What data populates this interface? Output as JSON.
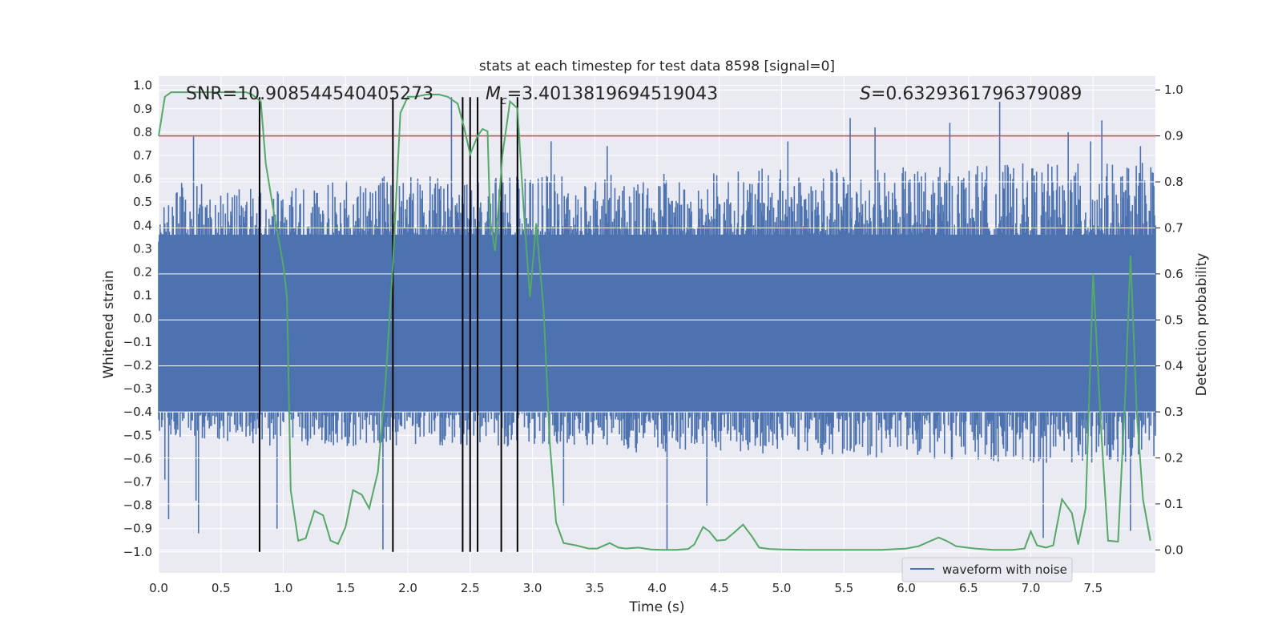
{
  "chart_data": {
    "type": "line",
    "title": "stats at each timestep for test data 8598 [signal=0]",
    "xlabel": "Time (s)",
    "ylabel_left": "Whitened strain",
    "ylabel_right": "Detection probability",
    "xlim": [
      0.0,
      8.0
    ],
    "ylim_left": [
      -1.09,
      1.04
    ],
    "ylim_right": [
      -0.05,
      1.03
    ],
    "x_ticks": [
      "0.0",
      "0.5",
      "1.0",
      "1.5",
      "2.0",
      "2.5",
      "3.0",
      "3.5",
      "4.0",
      "4.5",
      "5.0",
      "5.5",
      "6.0",
      "6.5",
      "7.0",
      "7.5"
    ],
    "y_ticks_left": [
      "1.0",
      "0.9",
      "0.8",
      "0.7",
      "0.6",
      "0.5",
      "0.4",
      "0.3",
      "0.2",
      "0.1",
      "0.0",
      "-0.1",
      "-0.2",
      "-0.3",
      "-0.4",
      "-0.5",
      "-0.6",
      "-0.7",
      "-0.8",
      "-0.9",
      "-1.0"
    ],
    "y_ticks_right": [
      "1.0",
      "0.9",
      "0.8",
      "0.7",
      "0.6",
      "0.5",
      "0.4",
      "0.3",
      "0.2",
      "0.1",
      "0.0"
    ],
    "annotations": {
      "snr": "SNR=10.908544540405273",
      "mc_symbol": "M",
      "mc_sub": "c",
      "mc_value": "=3.4013819694519043",
      "s_symbol": "S",
      "s_value": "=0.6329361796379089"
    },
    "legend": {
      "label": "waveform with noise",
      "location": "lower-right"
    },
    "threshold": {
      "value": 0.9,
      "axis": "right",
      "color": "#c44e52"
    },
    "vertical_markers": [
      0.81,
      1.88,
      2.44,
      2.5,
      2.56,
      2.75,
      2.88
    ],
    "series": [
      {
        "name": "waveform with noise",
        "color": "#4c72b0",
        "axis": "left",
        "note": "dense noisy strain, core band about ±0.4 with spikes to about ±0.95",
        "envelope_hi_anchors": [
          [
            0.0,
            0.45
          ],
          [
            0.2,
            0.62
          ],
          [
            0.5,
            0.58
          ],
          [
            1.0,
            0.55
          ],
          [
            1.5,
            0.6
          ],
          [
            2.0,
            0.62
          ],
          [
            2.5,
            0.6
          ],
          [
            3.0,
            0.62
          ],
          [
            4.0,
            0.62
          ],
          [
            5.0,
            0.65
          ],
          [
            6.0,
            0.65
          ],
          [
            7.0,
            0.67
          ],
          [
            8.0,
            0.67
          ]
        ],
        "envelope_lo_anchors": [
          [
            0.0,
            -0.5
          ],
          [
            1.0,
            -0.55
          ],
          [
            2.0,
            -0.55
          ],
          [
            3.0,
            -0.55
          ],
          [
            4.0,
            -0.58
          ],
          [
            5.0,
            -0.58
          ],
          [
            6.0,
            -0.6
          ],
          [
            7.0,
            -0.62
          ],
          [
            8.0,
            -0.62
          ]
        ],
        "spikes": [
          [
            0.05,
            -0.69
          ],
          [
            0.08,
            -0.86
          ],
          [
            0.28,
            0.78
          ],
          [
            0.3,
            -0.78
          ],
          [
            0.32,
            -0.92
          ],
          [
            0.95,
            -0.9
          ],
          [
            1.8,
            -0.99
          ],
          [
            2.35,
            0.95
          ],
          [
            3.15,
            0.76
          ],
          [
            3.25,
            -0.8
          ],
          [
            3.6,
            0.74
          ],
          [
            4.08,
            -0.99
          ],
          [
            4.4,
            -0.8
          ],
          [
            5.05,
            0.76
          ],
          [
            5.55,
            0.86
          ],
          [
            5.75,
            0.82
          ],
          [
            6.35,
            0.84
          ],
          [
            6.75,
            0.93
          ],
          [
            7.1,
            -0.94
          ],
          [
            7.3,
            0.8
          ],
          [
            7.48,
            0.76
          ],
          [
            7.57,
            0.85
          ],
          [
            7.8,
            -0.91
          ],
          [
            7.88,
            0.74
          ]
        ]
      },
      {
        "name": "detection probability",
        "color": "#55a868",
        "axis": "right",
        "points": [
          [
            0.0,
            0.9
          ],
          [
            0.05,
            0.985
          ],
          [
            0.1,
            0.995
          ],
          [
            0.2,
            0.995
          ],
          [
            0.3,
            0.995
          ],
          [
            0.4,
            0.995
          ],
          [
            0.5,
            0.995
          ],
          [
            0.6,
            0.995
          ],
          [
            0.7,
            0.995
          ],
          [
            0.75,
            0.99
          ],
          [
            0.82,
            0.975
          ],
          [
            0.86,
            0.84
          ],
          [
            0.92,
            0.74
          ],
          [
            1.0,
            0.62
          ],
          [
            1.03,
            0.55
          ],
          [
            1.06,
            0.13
          ],
          [
            1.12,
            0.02
          ],
          [
            1.18,
            0.025
          ],
          [
            1.25,
            0.085
          ],
          [
            1.32,
            0.075
          ],
          [
            1.38,
            0.02
          ],
          [
            1.44,
            0.013
          ],
          [
            1.5,
            0.05
          ],
          [
            1.56,
            0.13
          ],
          [
            1.63,
            0.12
          ],
          [
            1.69,
            0.09
          ],
          [
            1.76,
            0.17
          ],
          [
            1.82,
            0.36
          ],
          [
            1.88,
            0.62
          ],
          [
            1.94,
            0.95
          ],
          [
            2.0,
            0.985
          ],
          [
            2.06,
            0.985
          ],
          [
            2.15,
            0.99
          ],
          [
            2.25,
            0.99
          ],
          [
            2.32,
            0.985
          ],
          [
            2.4,
            0.97
          ],
          [
            2.45,
            0.92
          ],
          [
            2.5,
            0.86
          ],
          [
            2.56,
            0.9
          ],
          [
            2.6,
            0.915
          ],
          [
            2.64,
            0.91
          ],
          [
            2.66,
            0.72
          ],
          [
            2.7,
            0.65
          ],
          [
            2.76,
            0.86
          ],
          [
            2.82,
            0.975
          ],
          [
            2.88,
            0.96
          ],
          [
            2.93,
            0.74
          ],
          [
            2.98,
            0.55
          ],
          [
            3.03,
            0.71
          ],
          [
            3.09,
            0.52
          ],
          [
            3.14,
            0.23
          ],
          [
            3.19,
            0.06
          ],
          [
            3.25,
            0.015
          ],
          [
            3.35,
            0.01
          ],
          [
            3.45,
            0.003
          ],
          [
            3.52,
            0.003
          ],
          [
            3.62,
            0.015
          ],
          [
            3.69,
            0.005
          ],
          [
            3.75,
            0.003
          ],
          [
            3.85,
            0.005
          ],
          [
            3.95,
            0.001
          ],
          [
            4.05,
            0.0
          ],
          [
            4.15,
            0.0
          ],
          [
            4.25,
            0.002
          ],
          [
            4.3,
            0.012
          ],
          [
            4.37,
            0.05
          ],
          [
            4.42,
            0.04
          ],
          [
            4.48,
            0.02
          ],
          [
            4.55,
            0.022
          ],
          [
            4.62,
            0.038
          ],
          [
            4.69,
            0.055
          ],
          [
            4.76,
            0.03
          ],
          [
            4.82,
            0.005
          ],
          [
            4.9,
            0.002
          ],
          [
            5.0,
            0.001
          ],
          [
            5.2,
            0.0
          ],
          [
            5.5,
            0.0
          ],
          [
            5.8,
            0.0
          ],
          [
            6.0,
            0.003
          ],
          [
            6.1,
            0.008
          ],
          [
            6.2,
            0.02
          ],
          [
            6.26,
            0.027
          ],
          [
            6.32,
            0.02
          ],
          [
            6.4,
            0.008
          ],
          [
            6.55,
            0.003
          ],
          [
            6.7,
            0.0
          ],
          [
            6.85,
            0.0
          ],
          [
            6.95,
            0.003
          ],
          [
            7.0,
            0.04
          ],
          [
            7.05,
            0.01
          ],
          [
            7.12,
            0.005
          ],
          [
            7.18,
            0.01
          ],
          [
            7.25,
            0.11
          ],
          [
            7.33,
            0.08
          ],
          [
            7.38,
            0.012
          ],
          [
            7.44,
            0.09
          ],
          [
            7.5,
            0.6
          ],
          [
            7.56,
            0.28
          ],
          [
            7.62,
            0.02
          ],
          [
            7.7,
            0.018
          ],
          [
            7.76,
            0.35
          ],
          [
            7.8,
            0.64
          ],
          [
            7.85,
            0.3
          ],
          [
            7.9,
            0.11
          ],
          [
            7.96,
            0.02
          ]
        ]
      }
    ]
  }
}
